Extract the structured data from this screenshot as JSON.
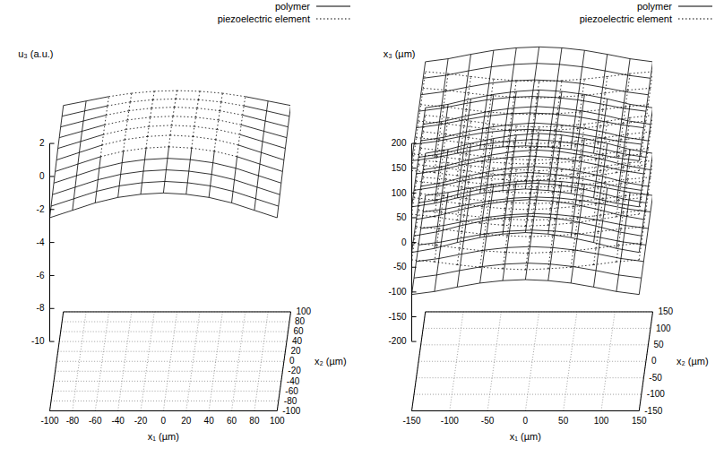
{
  "chart_data": [
    {
      "type": "surface",
      "x_label": "x₁ (µm)",
      "y_label": "x₂ (µm)",
      "z_label": "u₃ (a.u.)",
      "xlim": [
        -100,
        100
      ],
      "xticks": [
        -100,
        -80,
        -60,
        -40,
        -20,
        0,
        20,
        40,
        60,
        80,
        100
      ],
      "ylim": [
        -100,
        100
      ],
      "yticks": [
        -100,
        -80,
        -60,
        -40,
        -20,
        0,
        20,
        40,
        60,
        80,
        100
      ],
      "zlim": [
        -10,
        2
      ],
      "zticks": [
        -10,
        -8,
        -6,
        -4,
        -2,
        0,
        2
      ],
      "grid": true,
      "legend": "top-right",
      "series": [
        {
          "name": "polymer",
          "color": "#000000",
          "line_style": "solid"
        },
        {
          "name": "piezoelectric element",
          "color": "#000000",
          "line_style": "dotted"
        }
      ],
      "x1": [
        -100,
        -80,
        -60,
        -40,
        -20,
        0,
        20,
        40,
        60,
        80,
        100
      ],
      "x2": [
        -100,
        -80,
        -60,
        -40,
        -20,
        0,
        20,
        40,
        60,
        80,
        100
      ],
      "u3": [
        [
          -2.5,
          -2.05,
          -1.6,
          -1.27,
          -1.08,
          -1.0,
          -1.08,
          -1.27,
          -1.6,
          -2.05,
          -2.5
        ],
        [
          -2.4,
          -1.95,
          -1.5,
          -1.17,
          -0.98,
          -0.9,
          -0.98,
          -1.17,
          -1.5,
          -1.95,
          -2.4
        ],
        [
          -2.3,
          -1.85,
          -1.4,
          -1.07,
          -0.88,
          -0.8,
          -0.88,
          -1.07,
          -1.4,
          -1.85,
          -2.3
        ],
        [
          -2.2,
          -1.75,
          -1.3,
          -0.97,
          -0.78,
          -0.7,
          -0.78,
          -0.97,
          -1.3,
          -1.75,
          -2.2
        ],
        [
          -2.1,
          -1.65,
          -1.2,
          -0.87,
          -0.68,
          -0.6,
          -0.68,
          -0.87,
          -1.2,
          -1.65,
          -2.1
        ],
        [
          -2.0,
          -1.55,
          -1.1,
          -0.77,
          -0.58,
          -0.5,
          -0.58,
          -0.77,
          -1.1,
          -1.55,
          -2.0
        ],
        [
          -1.9,
          -1.48,
          -1.06,
          -0.75,
          -0.57,
          -0.5,
          -0.57,
          -0.75,
          -1.06,
          -1.48,
          -1.9
        ],
        [
          -1.85,
          -1.46,
          -1.07,
          -0.78,
          -0.61,
          -0.55,
          -0.61,
          -0.78,
          -1.07,
          -1.46,
          -1.85
        ],
        [
          -1.8,
          -1.44,
          -1.08,
          -0.82,
          -0.66,
          -0.6,
          -0.66,
          -0.82,
          -1.08,
          -1.44,
          -1.8
        ],
        [
          -1.75,
          -1.43,
          -1.12,
          -0.89,
          -0.75,
          -0.7,
          -0.75,
          -0.89,
          -1.12,
          -1.43,
          -1.75
        ],
        [
          -1.7,
          -1.43,
          -1.16,
          -0.96,
          -0.84,
          -0.8,
          -0.84,
          -0.96,
          -1.16,
          -1.43,
          -1.7
        ]
      ],
      "piezoelectric_element": {
        "x1": [
          -60,
          60
        ],
        "x2": [
          -20,
          100
        ]
      }
    },
    {
      "type": "layers",
      "x_label": "x₁ (µm)",
      "y_label": "x₂ (µm)",
      "z_label": "x₃ (µm)",
      "xlim": [
        -150,
        150
      ],
      "xticks": [
        -150,
        -100,
        -50,
        0,
        50,
        100,
        150
      ],
      "ylim": [
        -150,
        150
      ],
      "yticks": [
        -150,
        -100,
        -50,
        0,
        50,
        100,
        150
      ],
      "zlim": [
        -200,
        200
      ],
      "zticks": [
        -200,
        -150,
        -100,
        -50,
        0,
        50,
        100,
        150,
        200
      ],
      "grid": true,
      "legend": "top-right",
      "series": [
        {
          "name": "polymer",
          "color": "#000000",
          "line_style": "solid"
        },
        {
          "name": "piezoelectric element",
          "color": "#000000",
          "line_style": "dotted"
        }
      ],
      "x1": [
        -150,
        -120,
        -90,
        -60,
        -30,
        0,
        30,
        60,
        90,
        120,
        150
      ],
      "x2": [
        -150,
        -100,
        -50,
        0,
        50,
        100,
        150
      ],
      "layers": [
        {
          "material": "polymer",
          "x3": [
            -105,
            -99,
            -90,
            -82,
            -77,
            -75,
            -77,
            -82,
            -90,
            -99,
            -105
          ]
        },
        {
          "material": "piezoelectric element",
          "x3": [
            -35,
            -39,
            -45,
            -50,
            -53,
            -55,
            -53,
            -50,
            -45,
            -39,
            -35
          ]
        },
        {
          "material": "polymer",
          "x3": [
            -20,
            -12,
            0,
            10,
            17,
            20,
            17,
            10,
            0,
            -12,
            -20
          ]
        },
        {
          "material": "piezoelectric element",
          "x3": [
            57,
            52,
            45,
            39,
            35,
            33,
            35,
            39,
            45,
            52,
            57
          ]
        },
        {
          "material": "polymer",
          "x3": [
            72,
            79,
            90,
            99,
            105,
            108,
            105,
            99,
            90,
            79,
            72
          ]
        },
        {
          "material": "piezoelectric element",
          "x3": [
            145,
            141,
            135,
            130,
            127,
            125,
            127,
            130,
            135,
            141,
            145
          ]
        },
        {
          "material": "polymer",
          "x3": [
            165,
            171,
            180,
            188,
            193,
            195,
            193,
            188,
            180,
            171,
            165
          ]
        }
      ]
    }
  ]
}
